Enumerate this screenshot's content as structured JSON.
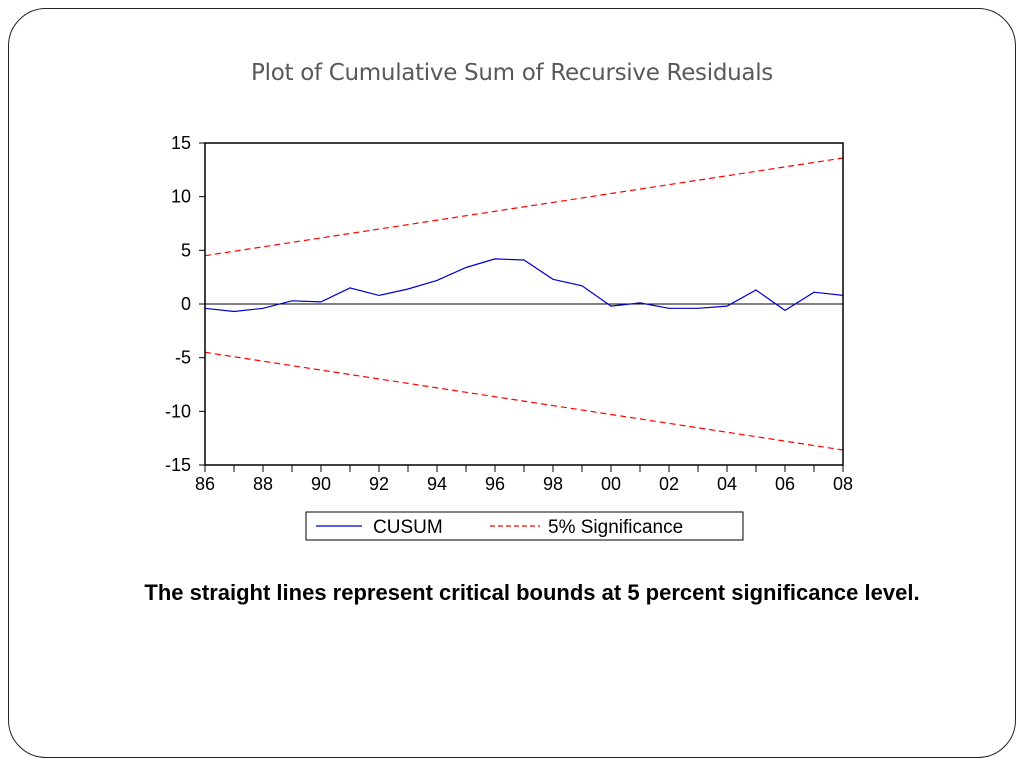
{
  "slide": {
    "title": "Plot of Cumulative Sum of Recursive Residuals",
    "caption": "The straight lines represent critical bounds at 5 percent significance level."
  },
  "chart_data": {
    "type": "line",
    "title": "",
    "xlabel": "",
    "ylabel": "",
    "xlim": [
      1986,
      2008
    ],
    "ylim": [
      -15,
      15
    ],
    "y_ticks": [
      15,
      10,
      5,
      0,
      -5,
      -10,
      -15
    ],
    "x_ticks": [
      {
        "year": 1986,
        "label": "86"
      },
      {
        "year": 1988,
        "label": "88"
      },
      {
        "year": 1990,
        "label": "90"
      },
      {
        "year": 1992,
        "label": "92"
      },
      {
        "year": 1994,
        "label": "94"
      },
      {
        "year": 1996,
        "label": "96"
      },
      {
        "year": 1998,
        "label": "98"
      },
      {
        "year": 2000,
        "label": "00"
      },
      {
        "year": 2002,
        "label": "02"
      },
      {
        "year": 2004,
        "label": "04"
      },
      {
        "year": 2006,
        "label": "06"
      },
      {
        "year": 2008,
        "label": "08"
      }
    ],
    "zero_line": true,
    "grid": false,
    "legend_position": "bottom",
    "series": [
      {
        "name": "CUSUM",
        "color": "#0000cc",
        "style": "solid",
        "x": [
          1986,
          1987,
          1988,
          1989,
          1990,
          1991,
          1992,
          1993,
          1994,
          1995,
          1996,
          1997,
          1998,
          1999,
          2000,
          2001,
          2002,
          2003,
          2004,
          2005,
          2006,
          2007,
          2008
        ],
        "y": [
          -0.4,
          -0.7,
          -0.4,
          0.3,
          0.2,
          1.5,
          0.8,
          1.4,
          2.2,
          3.4,
          4.2,
          4.1,
          2.3,
          1.7,
          -0.2,
          0.1,
          -0.4,
          -0.4,
          -0.2,
          1.3,
          -0.6,
          1.1,
          0.8
        ]
      },
      {
        "name": "5% Significance",
        "color": "#ff0000",
        "style": "dashed",
        "x": [
          1986,
          2008
        ],
        "y": [
          4.5,
          13.6
        ]
      },
      {
        "name": "",
        "color": "#ff0000",
        "style": "dashed",
        "x": [
          1986,
          2008
        ],
        "y": [
          -4.5,
          -13.6
        ]
      }
    ]
  }
}
